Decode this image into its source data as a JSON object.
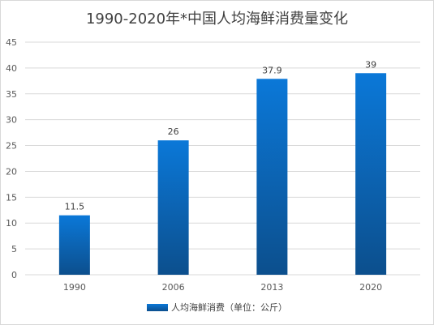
{
  "chart_data": {
    "type": "bar",
    "title": "1990-2020年*中国人均海鲜消费量变化",
    "categories": [
      "1990",
      "2006",
      "2013",
      "2020"
    ],
    "series": [
      {
        "name": "人均海鲜消费（单位：公斤）",
        "values": [
          11.5,
          26,
          37.9,
          39
        ]
      }
    ],
    "data_labels": [
      "11.5",
      "26",
      "37.9",
      "39"
    ],
    "ylim": [
      0,
      45
    ],
    "yticks": [
      0,
      5,
      10,
      15,
      20,
      25,
      30,
      35,
      40,
      45
    ],
    "grid": true,
    "legend_position": "bottom",
    "colors": {
      "bar_top": "#0b78d8",
      "bar_bottom": "#0c4f8d",
      "grid": "#d9d9d9",
      "text": "#595959"
    }
  }
}
